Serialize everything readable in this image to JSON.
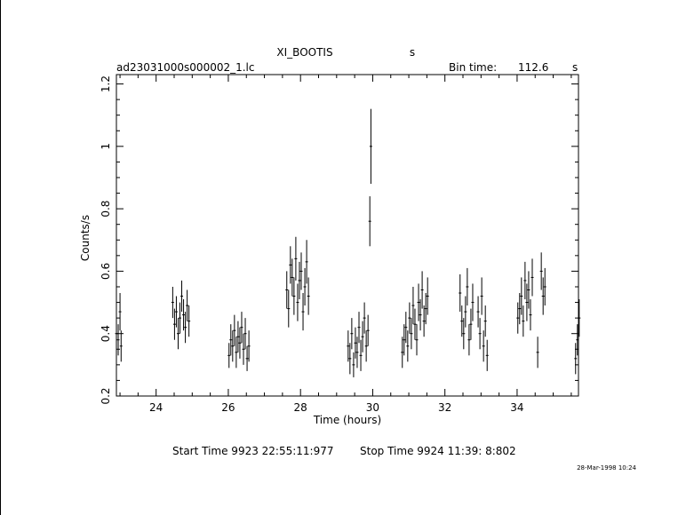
{
  "header": {
    "object_name": "XI_BOOTIS",
    "object_unit": "s",
    "file_name": "ad23031000s000002_1.lc",
    "bin_label": "Bin time:",
    "bin_value": "112.6",
    "bin_unit": "s"
  },
  "footer": {
    "start_time": "Start Time  9923 22:55:11:977",
    "stop_time": "Stop Time  9924 11:39: 8:802",
    "date_stamp": "28-Mar-1998 10:24"
  },
  "colors": {
    "ink": "#000000",
    "background": "#ffffff"
  },
  "chart_data": {
    "type": "scatter",
    "title": "XI_BOOTIS",
    "xlabel": "Time (hours)",
    "ylabel": "Counts/s",
    "xlim": [
      22.9,
      35.7
    ],
    "ylim": [
      0.2,
      1.23
    ],
    "x_ticks": [
      24,
      26,
      28,
      30,
      32,
      34
    ],
    "y_ticks": [
      0.2,
      0.4,
      0.6,
      0.8,
      1,
      1.2
    ],
    "x_tick_labels": [
      "24",
      "26",
      "28",
      "30",
      "32",
      "34"
    ],
    "y_tick_labels": [
      "0.2",
      "0.4",
      "0.6",
      "0.8",
      "1",
      "1.2"
    ],
    "grid": false,
    "error_bars": true,
    "series": [
      {
        "points": [
          [
            22.9,
            0.4,
            0.05
          ],
          [
            22.95,
            0.38,
            0.05
          ],
          [
            23.0,
            0.47,
            0.06
          ],
          [
            23.03,
            0.36,
            0.05
          ],
          [
            24.46,
            0.5,
            0.05
          ],
          [
            24.51,
            0.43,
            0.05
          ],
          [
            24.56,
            0.47,
            0.05
          ],
          [
            24.61,
            0.4,
            0.05
          ],
          [
            24.66,
            0.45,
            0.05
          ],
          [
            24.71,
            0.52,
            0.05
          ],
          [
            24.76,
            0.46,
            0.05
          ],
          [
            24.81,
            0.42,
            0.05
          ],
          [
            24.86,
            0.49,
            0.05
          ],
          [
            24.91,
            0.44,
            0.05
          ],
          [
            26.02,
            0.33,
            0.04
          ],
          [
            26.07,
            0.38,
            0.05
          ],
          [
            26.12,
            0.36,
            0.05
          ],
          [
            26.17,
            0.41,
            0.05
          ],
          [
            26.22,
            0.34,
            0.05
          ],
          [
            26.27,
            0.39,
            0.05
          ],
          [
            26.32,
            0.37,
            0.05
          ],
          [
            26.37,
            0.42,
            0.05
          ],
          [
            26.42,
            0.35,
            0.05
          ],
          [
            26.47,
            0.4,
            0.05
          ],
          [
            26.52,
            0.32,
            0.04
          ],
          [
            26.57,
            0.36,
            0.05
          ],
          [
            27.62,
            0.54,
            0.06
          ],
          [
            27.67,
            0.48,
            0.06
          ],
          [
            27.72,
            0.62,
            0.06
          ],
          [
            27.77,
            0.58,
            0.06
          ],
          [
            27.82,
            0.52,
            0.06
          ],
          [
            27.87,
            0.64,
            0.07
          ],
          [
            27.92,
            0.5,
            0.06
          ],
          [
            27.97,
            0.57,
            0.06
          ],
          [
            28.02,
            0.6,
            0.06
          ],
          [
            28.07,
            0.47,
            0.06
          ],
          [
            28.12,
            0.55,
            0.06
          ],
          [
            28.17,
            0.63,
            0.07
          ],
          [
            28.22,
            0.52,
            0.06
          ],
          [
            29.32,
            0.36,
            0.05
          ],
          [
            29.37,
            0.32,
            0.05
          ],
          [
            29.42,
            0.4,
            0.05
          ],
          [
            29.47,
            0.3,
            0.04
          ],
          [
            29.52,
            0.37,
            0.05
          ],
          [
            29.57,
            0.34,
            0.05
          ],
          [
            29.62,
            0.42,
            0.05
          ],
          [
            29.67,
            0.33,
            0.05
          ],
          [
            29.72,
            0.39,
            0.05
          ],
          [
            29.77,
            0.45,
            0.05
          ],
          [
            29.82,
            0.36,
            0.05
          ],
          [
            29.87,
            0.41,
            0.05
          ],
          [
            29.92,
            0.76,
            0.08
          ],
          [
            29.95,
            1.0,
            0.12
          ],
          [
            30.82,
            0.34,
            0.05
          ],
          [
            30.87,
            0.38,
            0.05
          ],
          [
            30.92,
            0.42,
            0.05
          ],
          [
            30.97,
            0.36,
            0.05
          ],
          [
            31.02,
            0.45,
            0.05
          ],
          [
            31.07,
            0.4,
            0.05
          ],
          [
            31.12,
            0.49,
            0.06
          ],
          [
            31.17,
            0.43,
            0.05
          ],
          [
            31.22,
            0.38,
            0.05
          ],
          [
            31.27,
            0.5,
            0.06
          ],
          [
            31.32,
            0.46,
            0.05
          ],
          [
            31.37,
            0.54,
            0.06
          ],
          [
            31.42,
            0.44,
            0.05
          ],
          [
            31.47,
            0.48,
            0.05
          ],
          [
            31.52,
            0.52,
            0.06
          ],
          [
            32.42,
            0.53,
            0.06
          ],
          [
            32.47,
            0.44,
            0.05
          ],
          [
            32.52,
            0.4,
            0.05
          ],
          [
            32.57,
            0.47,
            0.05
          ],
          [
            32.62,
            0.55,
            0.06
          ],
          [
            32.67,
            0.38,
            0.05
          ],
          [
            32.72,
            0.43,
            0.05
          ],
          [
            32.77,
            0.5,
            0.06
          ],
          [
            32.92,
            0.47,
            0.05
          ],
          [
            32.97,
            0.4,
            0.05
          ],
          [
            33.02,
            0.52,
            0.06
          ],
          [
            33.07,
            0.36,
            0.05
          ],
          [
            33.12,
            0.44,
            0.05
          ],
          [
            33.17,
            0.33,
            0.05
          ],
          [
            34.02,
            0.45,
            0.05
          ],
          [
            34.07,
            0.48,
            0.05
          ],
          [
            34.12,
            0.52,
            0.06
          ],
          [
            34.17,
            0.44,
            0.05
          ],
          [
            34.22,
            0.57,
            0.06
          ],
          [
            34.27,
            0.5,
            0.06
          ],
          [
            34.32,
            0.54,
            0.06
          ],
          [
            34.37,
            0.46,
            0.05
          ],
          [
            34.42,
            0.58,
            0.06
          ],
          [
            34.57,
            0.34,
            0.05
          ],
          [
            34.67,
            0.6,
            0.06
          ],
          [
            34.72,
            0.52,
            0.06
          ],
          [
            34.77,
            0.55,
            0.06
          ],
          [
            35.62,
            0.32,
            0.05
          ],
          [
            35.67,
            0.38,
            0.05
          ],
          [
            35.72,
            0.45,
            0.06
          ]
        ]
      }
    ]
  }
}
